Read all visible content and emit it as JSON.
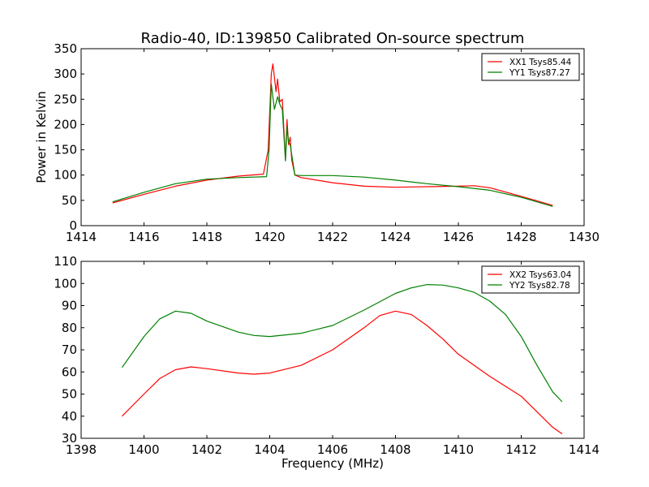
{
  "chart_data": [
    {
      "type": "line",
      "title": "Radio-40, ID:139850 Calibrated On-source spectrum",
      "xlabel": "",
      "ylabel": "Power in Kelvin",
      "xlim": [
        1414,
        1430
      ],
      "ylim": [
        0,
        350
      ],
      "xticks": [
        1414,
        1416,
        1418,
        1420,
        1422,
        1424,
        1426,
        1428,
        1430
      ],
      "yticks": [
        0,
        50,
        100,
        150,
        200,
        250,
        300,
        350
      ],
      "grid": false,
      "legend": "top-right",
      "series": [
        {
          "name": "XX1 Tsys85.44",
          "color": "#ff0000",
          "x": [
            1415,
            1416,
            1417,
            1418,
            1419,
            1419.8,
            1419.95,
            1420.05,
            1420.1,
            1420.2,
            1420.25,
            1420.32,
            1420.4,
            1420.5,
            1420.55,
            1420.6,
            1420.65,
            1420.7,
            1420.8,
            1421,
            1422,
            1423,
            1424,
            1425,
            1426,
            1426.5,
            1427,
            1428,
            1429
          ],
          "y": [
            45,
            62,
            78,
            90,
            98,
            102,
            150,
            300,
            320,
            265,
            290,
            245,
            250,
            130,
            210,
            160,
            175,
            130,
            100,
            95,
            85,
            78,
            76,
            77,
            78,
            79,
            75,
            58,
            40
          ]
        },
        {
          "name": "YY1 Tsys87.27",
          "color": "#008000",
          "x": [
            1415,
            1416,
            1417,
            1418,
            1419,
            1419.9,
            1419.98,
            1420.05,
            1420.15,
            1420.25,
            1420.32,
            1420.4,
            1420.5,
            1420.55,
            1420.6,
            1420.65,
            1420.8,
            1421,
            1422,
            1423,
            1424,
            1425,
            1426,
            1427,
            1428,
            1429
          ],
          "y": [
            47,
            66,
            83,
            92,
            95,
            97,
            150,
            280,
            230,
            255,
            240,
            230,
            128,
            195,
            165,
            160,
            100,
            99,
            99,
            96,
            90,
            83,
            77,
            70,
            56,
            38
          ]
        }
      ]
    },
    {
      "type": "line",
      "title": "",
      "xlabel": "Frequency (MHz)",
      "ylabel": "",
      "xlim": [
        1398,
        1414
      ],
      "ylim": [
        30,
        110
      ],
      "xticks": [
        1398,
        1400,
        1402,
        1404,
        1406,
        1408,
        1410,
        1412,
        1414
      ],
      "yticks": [
        30,
        40,
        50,
        60,
        70,
        80,
        90,
        100,
        110
      ],
      "grid": false,
      "legend": "top-right",
      "series": [
        {
          "name": "XX2 Tsys63.04",
          "color": "#ff0000",
          "x": [
            1399.3,
            1400,
            1400.5,
            1401,
            1401.5,
            1402,
            1403,
            1403.5,
            1404,
            1405,
            1406,
            1407,
            1407.5,
            1408,
            1408.5,
            1409,
            1409.5,
            1410,
            1411,
            1412,
            1413,
            1413.3
          ],
          "y": [
            40,
            50,
            57,
            61,
            62.3,
            61.5,
            59.5,
            59,
            59.5,
            63,
            70,
            80,
            85.5,
            87.5,
            86,
            81,
            75,
            68,
            58,
            49,
            35,
            32
          ]
        },
        {
          "name": "YY2 Tsys82.78",
          "color": "#008000",
          "x": [
            1399.3,
            1400,
            1400.5,
            1401,
            1401.5,
            1402,
            1403,
            1403.5,
            1404,
            1405,
            1406,
            1407,
            1408,
            1408.5,
            1409,
            1409.5,
            1410,
            1410.5,
            1411,
            1411.5,
            1412,
            1412.5,
            1413,
            1413.3
          ],
          "y": [
            62,
            76,
            84,
            87.5,
            86.5,
            83,
            78,
            76.5,
            76,
            77.5,
            81,
            88,
            95.5,
            98,
            99.5,
            99.3,
            98,
            96,
            92,
            86,
            76,
            63,
            51,
            46.5
          ]
        }
      ]
    }
  ]
}
